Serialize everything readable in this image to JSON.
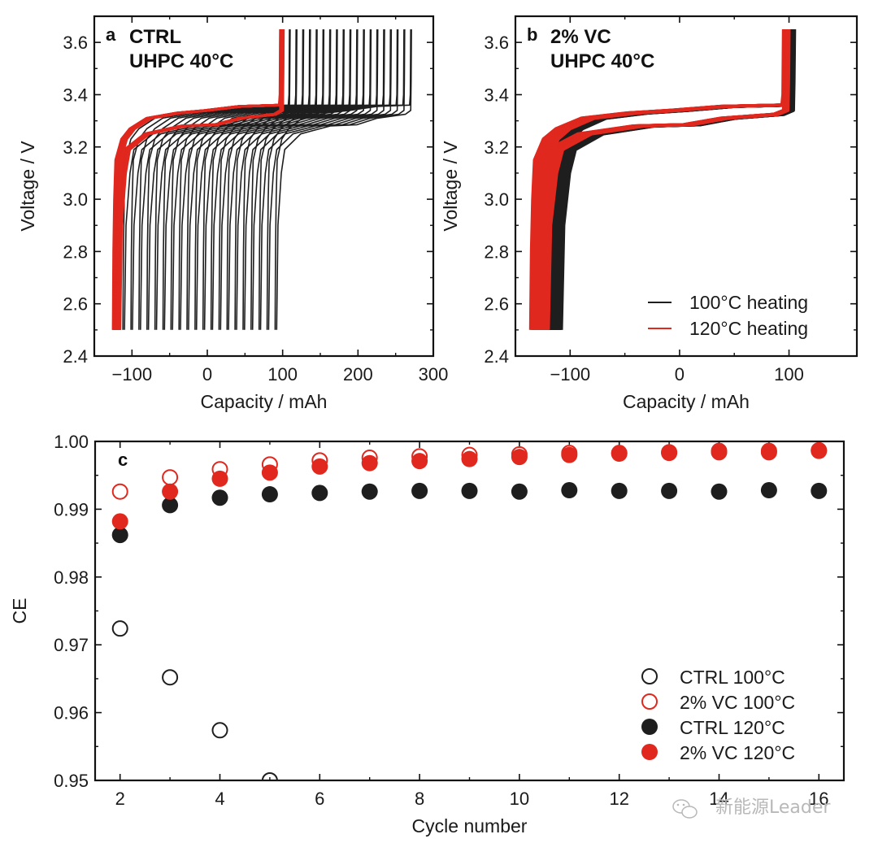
{
  "colors": {
    "black": "#1e1e1e",
    "red": "#e0281e",
    "axis": "#111111"
  },
  "chart_data": [
    {
      "id": "a",
      "type": "line",
      "panel_letter": "a",
      "title_lines": [
        "CTRL",
        "UHPC 40°C"
      ],
      "xlabel": "Capacity / mAh",
      "ylabel": "Voltage / V",
      "xlim": [
        -150,
        300
      ],
      "ylim": [
        2.4,
        3.7
      ],
      "xticks": [
        -100,
        0,
        100,
        200,
        300
      ],
      "xtick_labels": [
        "−100",
        "0",
        "100",
        "200",
        "300"
      ],
      "xminor": [
        -50,
        50,
        150,
        250
      ],
      "yticks": [
        2.4,
        2.6,
        2.8,
        3.0,
        3.2,
        3.4,
        3.6
      ],
      "ytick_labels": [
        "2.4",
        "2.6",
        "2.8",
        "3.0",
        "3.2",
        "3.4",
        "3.6"
      ],
      "yminor": [
        2.5,
        2.7,
        2.9,
        3.1,
        3.3,
        3.5
      ],
      "voltage_window": [
        2.5,
        3.65
      ],
      "series": [
        {
          "name": "100°C heating",
          "color": "black",
          "cycles": 20,
          "discharge_end_capacity": [
            -112,
            90
          ],
          "charge_end_capacity": [
            100,
            270
          ]
        },
        {
          "name": "120°C heating",
          "color": "red",
          "cycles": 16,
          "discharge_end_capacity": [
            -125,
            -118
          ],
          "charge_end_capacity": [
            97,
            100
          ]
        }
      ]
    },
    {
      "id": "b",
      "type": "line",
      "panel_letter": "b",
      "title_lines": [
        "2% VC",
        "UHPC 40°C"
      ],
      "xlabel": "Capacity / mAh",
      "ylabel": "Voltage / V",
      "xlim": [
        -150,
        162
      ],
      "ylim": [
        2.4,
        3.7
      ],
      "xticks": [
        -100,
        0,
        100
      ],
      "xtick_labels": [
        "−100",
        "0",
        "100"
      ],
      "xminor": [
        -50,
        50
      ],
      "yticks": [
        2.4,
        2.6,
        2.8,
        3.0,
        3.2,
        3.4,
        3.6
      ],
      "ytick_labels": [
        "2.4",
        "2.6",
        "2.8",
        "3.0",
        "3.2",
        "3.4",
        "3.6"
      ],
      "yminor": [
        2.5,
        2.7,
        2.9,
        3.1,
        3.3,
        3.5
      ],
      "voltage_window": [
        2.5,
        3.65
      ],
      "legend": {
        "position": "bottom-right",
        "entries": [
          {
            "label": "100°C heating",
            "color": "black"
          },
          {
            "label": "120°C heating",
            "color": "red"
          }
        ]
      },
      "series": [
        {
          "name": "100°C heating",
          "color": "black",
          "cycles": 16,
          "discharge_end_capacity": [
            -125,
            -110
          ],
          "charge_end_capacity": [
            100,
            104
          ]
        },
        {
          "name": "120°C heating",
          "color": "red",
          "cycles": 16,
          "discharge_end_capacity": [
            -136,
            -122
          ],
          "charge_end_capacity": [
            95,
            99
          ]
        }
      ]
    },
    {
      "id": "c",
      "type": "scatter",
      "panel_letter": "c",
      "xlabel": "Cycle number",
      "ylabel": "CE",
      "xlim": [
        1.5,
        16.5
      ],
      "ylim": [
        0.95,
        1.0
      ],
      "xticks": [
        2,
        4,
        6,
        8,
        10,
        12,
        14,
        16
      ],
      "xtick_labels": [
        "2",
        "4",
        "6",
        "8",
        "10",
        "12",
        "14",
        "16"
      ],
      "xminor": [
        3,
        5,
        7,
        9,
        11,
        13,
        15
      ],
      "yticks": [
        0.95,
        0.96,
        0.97,
        0.98,
        0.99,
        1.0
      ],
      "ytick_labels": [
        "0.95",
        "0.96",
        "0.97",
        "0.98",
        "0.99",
        "1.00"
      ],
      "yminor": [
        0.955,
        0.965,
        0.975,
        0.985,
        0.995
      ],
      "legend": {
        "position": "bottom-right",
        "entries": [
          {
            "label": "CTRL 100°C",
            "color": "black",
            "filled": false
          },
          {
            "label": "2% VC 100°C",
            "color": "red",
            "filled": false
          },
          {
            "label": "CTRL 120°C",
            "color": "black",
            "filled": true
          },
          {
            "label": "2% VC 120°C",
            "color": "red",
            "filled": true
          }
        ]
      },
      "series": [
        {
          "name": "CTRL 100°C",
          "color": "black",
          "filled": false,
          "x": [
            2,
            3,
            4,
            5
          ],
          "y": [
            0.9724,
            0.9652,
            0.9574,
            0.95
          ]
        },
        {
          "name": "2% VC 100°C",
          "color": "red",
          "filled": false,
          "x": [
            2,
            3,
            4,
            5,
            6,
            7,
            8,
            9,
            10,
            11,
            12,
            13,
            14,
            15,
            16
          ],
          "y": [
            0.9926,
            0.9947,
            0.9959,
            0.9966,
            0.9972,
            0.9976,
            0.9978,
            0.998,
            0.9981,
            0.9983,
            0.9983,
            0.9984,
            0.9986,
            0.9986,
            0.9987
          ]
        },
        {
          "name": "CTRL 120°C",
          "color": "black",
          "filled": true,
          "x": [
            2,
            3,
            4,
            5,
            6,
            7,
            8,
            9,
            10,
            11,
            12,
            13,
            14,
            15,
            16
          ],
          "y": [
            0.9862,
            0.9906,
            0.9917,
            0.9922,
            0.9924,
            0.9926,
            0.9927,
            0.9927,
            0.9926,
            0.9928,
            0.9927,
            0.9927,
            0.9926,
            0.9928,
            0.9927
          ]
        },
        {
          "name": "2% VC 120°C",
          "color": "red",
          "filled": true,
          "x": [
            2,
            3,
            4,
            5,
            6,
            7,
            8,
            9,
            10,
            11,
            12,
            13,
            14,
            15,
            16
          ],
          "y": [
            0.9882,
            0.9926,
            0.9945,
            0.9954,
            0.9963,
            0.9968,
            0.9971,
            0.9974,
            0.9977,
            0.998,
            0.9982,
            0.9983,
            0.9984,
            0.9984,
            0.9986
          ]
        }
      ]
    }
  ],
  "watermark": {
    "text": "新能源Leader",
    "icon": "wechat-icon"
  }
}
